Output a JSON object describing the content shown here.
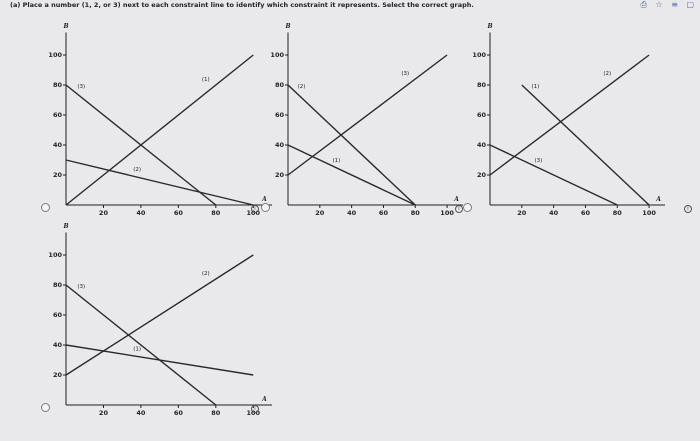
{
  "question": {
    "part": "(a)",
    "text": "Place a number (1, 2, or 3) next to each constraint line to identify which constraint it represents. Select the correct graph."
  },
  "top_icons": [
    "bookmark-icon",
    "star-icon",
    "translate-icon",
    "window-icon"
  ],
  "axes": {
    "y_label": "B",
    "x_label": "A",
    "y_ticks": [
      "20",
      "40",
      "60",
      "80",
      "100"
    ],
    "x_ticks": [
      "20",
      "40",
      "60",
      "80",
      "100"
    ]
  },
  "options": [
    {
      "id": "option-1",
      "lines": [
        {
          "label": "(1)",
          "from": [
            0,
            0
          ],
          "to": [
            100,
            100
          ]
        },
        {
          "label": "(2)",
          "from": [
            0,
            30
          ],
          "to": [
            100,
            0
          ]
        },
        {
          "label": "(3)",
          "from": [
            0,
            80
          ],
          "to": [
            80,
            0
          ]
        }
      ]
    },
    {
      "id": "option-2",
      "lines": [
        {
          "label": "(3)",
          "from": [
            0,
            20
          ],
          "to": [
            100,
            100
          ]
        },
        {
          "label": "(1)",
          "from": [
            0,
            40
          ],
          "to": [
            80,
            0
          ]
        },
        {
          "label": "(2)",
          "from": [
            0,
            80
          ],
          "to": [
            80,
            0
          ]
        }
      ]
    },
    {
      "id": "option-3",
      "lines": [
        {
          "label": "(2)",
          "from": [
            0,
            20
          ],
          "to": [
            100,
            100
          ]
        },
        {
          "label": "(3)",
          "from": [
            0,
            40
          ],
          "to": [
            80,
            0
          ]
        },
        {
          "label": "(1)",
          "from": [
            20,
            80
          ],
          "to": [
            100,
            0
          ]
        }
      ]
    },
    {
      "id": "option-4",
      "lines": [
        {
          "label": "(2)",
          "from": [
            0,
            20
          ],
          "to": [
            100,
            100
          ]
        },
        {
          "label": "(1)",
          "from": [
            0,
            40
          ],
          "to": [
            100,
            20
          ]
        },
        {
          "label": "(3)",
          "from": [
            0,
            80
          ],
          "to": [
            80,
            0
          ]
        }
      ]
    }
  ]
}
